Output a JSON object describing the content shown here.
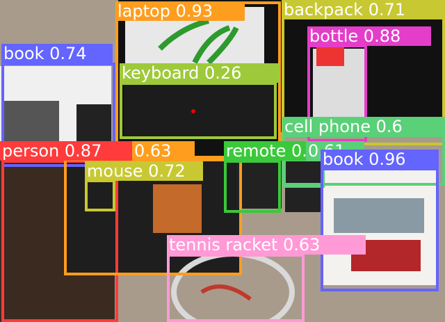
{
  "detections": [
    {
      "label": "laptop 0.93",
      "color": "#ff9d1f"
    },
    {
      "label": "backpack 0.71",
      "color": "#c8c832"
    },
    {
      "label": "bottle 0.88",
      "color": "#e43dc9"
    },
    {
      "label": "book 0.74",
      "color": "#6464ff"
    },
    {
      "label": "keyboard 0.26",
      "color": "#9ec93a"
    },
    {
      "label": "cell phone 0.6",
      "color": "#5ad078"
    },
    {
      "label": "person 0.87",
      "color": "#ff3b3b"
    },
    {
      "label": "0.63",
      "color": "#ff9d1f"
    },
    {
      "label": "mouse 0.72",
      "color": "#c8c832"
    },
    {
      "label": "remote 0.6",
      "color": "#3ac93a"
    },
    {
      "label": "0.61",
      "color": "#5ad078"
    },
    {
      "label": "book 0.96",
      "color": "#6464ff"
    },
    {
      "label": "tennis racket 0.63",
      "color": "#ff9ad6"
    }
  ]
}
